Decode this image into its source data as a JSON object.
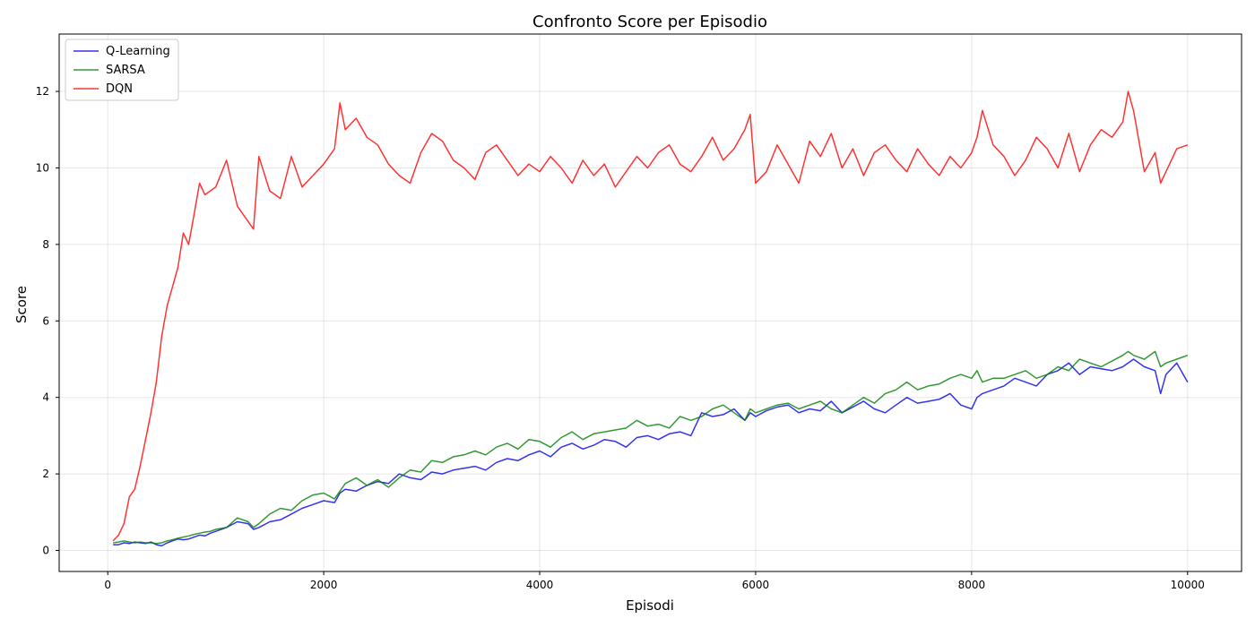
{
  "chart_data": {
    "type": "line",
    "title": "Confronto Score per Episodio",
    "xlabel": "Episodi",
    "ylabel": "Score",
    "xlim": [
      -450,
      10500
    ],
    "ylim": [
      -0.55,
      13.5
    ],
    "xticks": [
      0,
      2000,
      4000,
      6000,
      8000,
      10000
    ],
    "yticks": [
      0,
      2,
      4,
      6,
      8,
      10,
      12
    ],
    "grid": true,
    "legend_position": "top-left",
    "x": [
      50,
      100,
      150,
      200,
      250,
      300,
      350,
      400,
      450,
      500,
      550,
      600,
      650,
      700,
      750,
      800,
      850,
      900,
      950,
      1000,
      1100,
      1200,
      1300,
      1350,
      1400,
      1500,
      1600,
      1700,
      1800,
      1900,
      2000,
      2100,
      2150,
      2200,
      2300,
      2400,
      2500,
      2600,
      2700,
      2800,
      2900,
      3000,
      3100,
      3200,
      3300,
      3400,
      3500,
      3600,
      3700,
      3800,
      3900,
      4000,
      4100,
      4200,
      4300,
      4400,
      4500,
      4600,
      4700,
      4800,
      4900,
      5000,
      5100,
      5200,
      5300,
      5400,
      5500,
      5600,
      5700,
      5800,
      5900,
      5950,
      6000,
      6100,
      6200,
      6300,
      6400,
      6500,
      6600,
      6700,
      6800,
      6900,
      7000,
      7100,
      7200,
      7300,
      7400,
      7500,
      7600,
      7700,
      7800,
      7900,
      8000,
      8050,
      8100,
      8200,
      8300,
      8400,
      8500,
      8600,
      8700,
      8800,
      8900,
      9000,
      9100,
      9200,
      9300,
      9400,
      9450,
      9500,
      9600,
      9700,
      9750,
      9800,
      9900,
      10000
    ],
    "series": [
      {
        "name": "Q-Learning",
        "color": "#0000ee",
        "values": [
          0.15,
          0.15,
          0.2,
          0.18,
          0.22,
          0.2,
          0.18,
          0.22,
          0.15,
          0.12,
          0.2,
          0.25,
          0.3,
          0.28,
          0.3,
          0.35,
          0.4,
          0.38,
          0.45,
          0.5,
          0.6,
          0.75,
          0.7,
          0.55,
          0.6,
          0.75,
          0.8,
          0.95,
          1.1,
          1.2,
          1.3,
          1.25,
          1.5,
          1.6,
          1.55,
          1.7,
          1.8,
          1.75,
          2.0,
          1.9,
          1.85,
          2.05,
          2.0,
          2.1,
          2.15,
          2.2,
          2.1,
          2.3,
          2.4,
          2.35,
          2.5,
          2.6,
          2.45,
          2.7,
          2.8,
          2.65,
          2.75,
          2.9,
          2.85,
          2.7,
          2.95,
          3.0,
          2.9,
          3.05,
          3.1,
          3.0,
          3.6,
          3.5,
          3.55,
          3.7,
          3.4,
          3.6,
          3.5,
          3.65,
          3.75,
          3.8,
          3.6,
          3.7,
          3.65,
          3.9,
          3.6,
          3.75,
          3.9,
          3.7,
          3.6,
          3.8,
          4.0,
          3.85,
          3.9,
          3.95,
          4.1,
          3.8,
          3.7,
          4.0,
          4.1,
          4.2,
          4.3,
          4.5,
          4.4,
          4.3,
          4.6,
          4.7,
          4.9,
          4.6,
          4.8,
          4.75,
          4.7,
          4.8,
          4.9,
          5.0,
          4.8,
          4.7,
          4.1,
          4.6,
          4.9,
          4.4
        ]
      },
      {
        "name": "SARSA",
        "color": "#008000",
        "values": [
          0.2,
          0.22,
          0.25,
          0.22,
          0.2,
          0.22,
          0.2,
          0.2,
          0.18,
          0.2,
          0.25,
          0.28,
          0.32,
          0.35,
          0.38,
          0.42,
          0.45,
          0.48,
          0.5,
          0.55,
          0.6,
          0.85,
          0.75,
          0.6,
          0.7,
          0.95,
          1.1,
          1.05,
          1.3,
          1.45,
          1.5,
          1.35,
          1.55,
          1.75,
          1.9,
          1.7,
          1.85,
          1.65,
          1.9,
          2.1,
          2.05,
          2.35,
          2.3,
          2.45,
          2.5,
          2.6,
          2.5,
          2.7,
          2.8,
          2.65,
          2.9,
          2.85,
          2.7,
          2.95,
          3.1,
          2.9,
          3.05,
          3.1,
          3.15,
          3.2,
          3.4,
          3.25,
          3.3,
          3.2,
          3.5,
          3.4,
          3.5,
          3.7,
          3.8,
          3.6,
          3.4,
          3.7,
          3.6,
          3.7,
          3.8,
          3.85,
          3.7,
          3.8,
          3.9,
          3.7,
          3.6,
          3.8,
          4.0,
          3.85,
          4.1,
          4.2,
          4.4,
          4.2,
          4.3,
          4.35,
          4.5,
          4.6,
          4.5,
          4.7,
          4.4,
          4.5,
          4.5,
          4.6,
          4.7,
          4.5,
          4.6,
          4.8,
          4.7,
          5.0,
          4.9,
          4.8,
          4.95,
          5.1,
          5.2,
          5.1,
          5.0,
          5.2,
          4.8,
          4.9,
          5.0,
          5.1
        ]
      },
      {
        "name": "DQN",
        "color": "#ff0000",
        "values": [
          0.25,
          0.4,
          0.7,
          1.4,
          1.6,
          2.2,
          2.9,
          3.6,
          4.4,
          5.6,
          6.4,
          6.9,
          7.4,
          8.3,
          8.0,
          8.8,
          9.6,
          9.3,
          9.4,
          9.5,
          10.2,
          9.0,
          8.6,
          8.4,
          10.3,
          9.4,
          9.2,
          10.3,
          9.5,
          9.8,
          10.1,
          10.5,
          11.7,
          11.0,
          11.3,
          10.8,
          10.6,
          10.1,
          9.8,
          9.6,
          10.4,
          10.9,
          10.7,
          10.2,
          10.0,
          9.7,
          10.4,
          10.6,
          10.2,
          9.8,
          10.1,
          9.9,
          10.3,
          10.0,
          9.6,
          10.2,
          9.8,
          10.1,
          9.5,
          9.9,
          10.3,
          10.0,
          10.4,
          10.6,
          10.1,
          9.9,
          10.3,
          10.8,
          10.2,
          10.5,
          11.0,
          11.4,
          9.6,
          9.9,
          10.6,
          10.1,
          9.6,
          10.7,
          10.3,
          10.9,
          10.0,
          10.5,
          9.8,
          10.4,
          10.6,
          10.2,
          9.9,
          10.5,
          10.1,
          9.8,
          10.3,
          10.0,
          10.4,
          10.8,
          11.5,
          10.6,
          10.3,
          9.8,
          10.2,
          10.8,
          10.5,
          10.0,
          10.9,
          9.9,
          10.6,
          11.0,
          10.8,
          11.2,
          12.0,
          11.5,
          9.9,
          10.4,
          9.6,
          9.9,
          10.5,
          10.6
        ]
      }
    ]
  }
}
